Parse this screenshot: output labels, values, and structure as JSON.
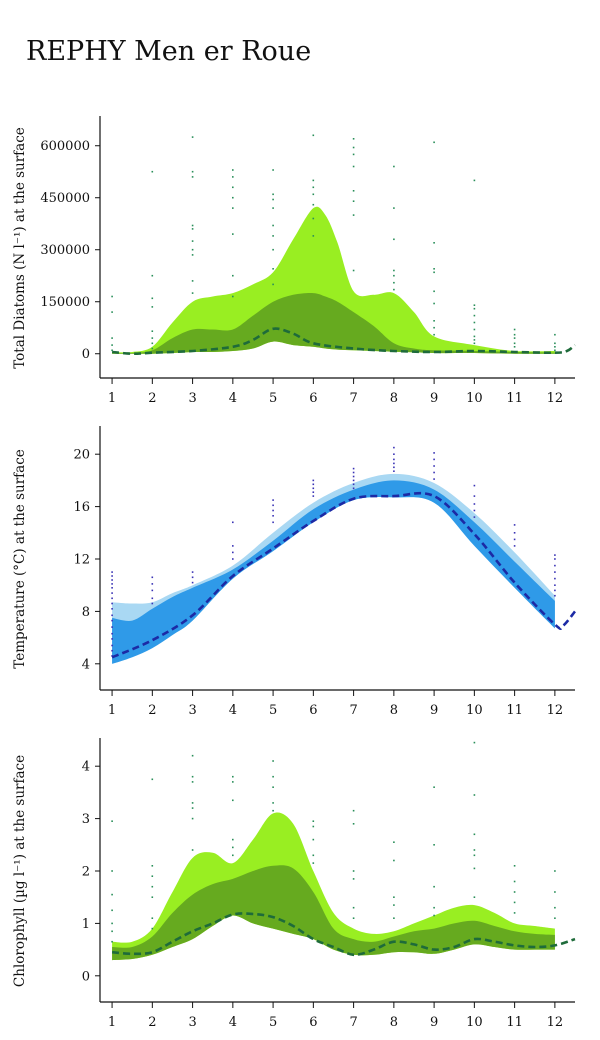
{
  "page": {
    "title": "REPHY Men er Roue"
  },
  "chart_data": [
    {
      "type": "area",
      "ylabel": "Total Diatoms (N l⁻¹) at the surface",
      "x_ticks": [
        1,
        2,
        3,
        4,
        5,
        6,
        7,
        8,
        9,
        10,
        11,
        12
      ],
      "y_ticks": [
        0,
        150000,
        300000,
        450000,
        600000
      ],
      "y_tick_labels": [
        "0",
        "150000",
        "300000",
        "450000",
        "600000"
      ],
      "xlim": [
        0.7,
        12.5
      ],
      "ylim": [
        -70000,
        680000
      ],
      "colors": {
        "outer": "#99ee22",
        "inner": "#66aa1f",
        "median": "#1e6b3a",
        "points": "#2a8f5a"
      },
      "bands": {
        "x": [
          1,
          1.5,
          2,
          2.5,
          3,
          3.5,
          4,
          4.5,
          5,
          5.5,
          6,
          6.3,
          6.6,
          7,
          7.5,
          8,
          8.5,
          9,
          10,
          11,
          12
        ],
        "outer_hi": [
          5000,
          5000,
          20000,
          90000,
          150000,
          165000,
          175000,
          200000,
          235000,
          330000,
          420000,
          400000,
          320000,
          180000,
          170000,
          175000,
          120000,
          50000,
          25000,
          8000,
          8000
        ],
        "inner_hi": [
          2000,
          2000,
          10000,
          45000,
          70000,
          70000,
          70000,
          110000,
          150000,
          170000,
          175000,
          165000,
          150000,
          120000,
          80000,
          30000,
          15000,
          10000,
          8000,
          5000,
          3000
        ],
        "inner_lo": [
          0,
          0,
          0,
          2000,
          5000,
          5000,
          8000,
          15000,
          35000,
          25000,
          20000,
          15000,
          12000,
          10000,
          8000,
          6000,
          4000,
          2000,
          2000,
          0,
          0
        ]
      },
      "median": {
        "x": [
          1,
          1.5,
          2,
          3,
          4,
          4.5,
          5,
          5.5,
          6,
          7,
          8,
          9,
          10,
          11,
          12,
          12.3,
          12.5
        ],
        "y": [
          5000,
          0,
          3000,
          8000,
          20000,
          40000,
          72000,
          58000,
          30000,
          15000,
          8000,
          5000,
          8000,
          5000,
          3000,
          8000,
          25000
        ]
      },
      "points": [
        [
          1,
          165000
        ],
        [
          1,
          120000
        ],
        [
          1,
          45000
        ],
        [
          1,
          25000
        ],
        [
          1,
          10000
        ],
        [
          2,
          525000
        ],
        [
          2,
          225000
        ],
        [
          2,
          160000
        ],
        [
          2,
          135000
        ],
        [
          2,
          65000
        ],
        [
          2,
          45000
        ],
        [
          2,
          30000
        ],
        [
          2,
          15000
        ],
        [
          3,
          625000
        ],
        [
          3,
          525000
        ],
        [
          3,
          510000
        ],
        [
          3,
          370000
        ],
        [
          3,
          360000
        ],
        [
          3,
          325000
        ],
        [
          3,
          300000
        ],
        [
          3,
          285000
        ],
        [
          3,
          210000
        ],
        [
          3,
          175000
        ],
        [
          4,
          530000
        ],
        [
          4,
          510000
        ],
        [
          4,
          480000
        ],
        [
          4,
          450000
        ],
        [
          4,
          420000
        ],
        [
          4,
          345000
        ],
        [
          4,
          225000
        ],
        [
          4,
          165000
        ],
        [
          5,
          530000
        ],
        [
          5,
          460000
        ],
        [
          5,
          445000
        ],
        [
          5,
          420000
        ],
        [
          5,
          370000
        ],
        [
          5,
          340000
        ],
        [
          5,
          300000
        ],
        [
          5,
          245000
        ],
        [
          5,
          200000
        ],
        [
          6,
          630000
        ],
        [
          6,
          500000
        ],
        [
          6,
          480000
        ],
        [
          6,
          460000
        ],
        [
          6,
          430000
        ],
        [
          6,
          390000
        ],
        [
          6,
          340000
        ],
        [
          7,
          620000
        ],
        [
          7,
          595000
        ],
        [
          7,
          575000
        ],
        [
          7,
          540000
        ],
        [
          7,
          470000
        ],
        [
          7,
          440000
        ],
        [
          7,
          400000
        ],
        [
          7,
          240000
        ],
        [
          8,
          540000
        ],
        [
          8,
          420000
        ],
        [
          8,
          330000
        ],
        [
          8,
          240000
        ],
        [
          8,
          225000
        ],
        [
          8,
          205000
        ],
        [
          8,
          185000
        ],
        [
          9,
          610000
        ],
        [
          9,
          320000
        ],
        [
          9,
          245000
        ],
        [
          9,
          235000
        ],
        [
          9,
          180000
        ],
        [
          9,
          145000
        ],
        [
          9,
          95000
        ],
        [
          9,
          75000
        ],
        [
          9,
          55000
        ],
        [
          10,
          500000
        ],
        [
          10,
          140000
        ],
        [
          10,
          130000
        ],
        [
          10,
          110000
        ],
        [
          10,
          90000
        ],
        [
          10,
          70000
        ],
        [
          10,
          50000
        ],
        [
          10,
          40000
        ],
        [
          10,
          30000
        ],
        [
          11,
          70000
        ],
        [
          11,
          55000
        ],
        [
          11,
          45000
        ],
        [
          11,
          30000
        ],
        [
          11,
          20000
        ],
        [
          12,
          55000
        ],
        [
          12,
          30000
        ],
        [
          12,
          20000
        ],
        [
          12,
          10000
        ]
      ]
    },
    {
      "type": "area",
      "ylabel": "Temperature (°C) at the surface",
      "x_ticks": [
        1,
        2,
        3,
        4,
        5,
        6,
        7,
        8,
        9,
        10,
        11,
        12
      ],
      "y_ticks": [
        4,
        8,
        12,
        16,
        20
      ],
      "y_tick_labels": [
        "4",
        "8",
        "12",
        "16",
        "20"
      ],
      "xlim": [
        0.7,
        12.5
      ],
      "ylim": [
        2,
        22
      ],
      "colors": {
        "outer": "#a9d8f3",
        "inner": "#2f9ae8",
        "median": "#1c2aa5",
        "points": "#3a33b5"
      },
      "bands": {
        "x": [
          1,
          1.5,
          2,
          2.5,
          3,
          4,
          5,
          6,
          7,
          8,
          9,
          10,
          11,
          12
        ],
        "outer_hi": [
          8.7,
          8.6,
          8.7,
          9.4,
          10.0,
          11.5,
          14.0,
          16.3,
          17.8,
          18.5,
          17.8,
          15.5,
          12.5,
          9.2
        ],
        "inner_hi": [
          7.5,
          7.3,
          8.2,
          9.1,
          9.8,
          11.2,
          13.4,
          15.8,
          17.3,
          18.0,
          17.3,
          14.8,
          11.8,
          8.8
        ],
        "inner_lo": [
          4.0,
          4.5,
          5.2,
          6.2,
          7.3,
          10.5,
          12.6,
          14.8,
          16.5,
          16.7,
          16.3,
          13.0,
          9.8,
          6.7
        ]
      },
      "median": {
        "x": [
          1,
          2,
          3,
          4,
          5,
          6,
          7,
          8,
          9,
          10,
          11,
          12,
          12.2,
          12.5
        ],
        "y": [
          4.5,
          5.8,
          7.7,
          10.7,
          12.8,
          14.9,
          16.6,
          16.8,
          16.8,
          13.9,
          10.2,
          7.0,
          6.9,
          8.0
        ]
      },
      "points": [
        [
          1,
          11.0
        ],
        [
          1,
          10.7
        ],
        [
          1,
          10.4
        ],
        [
          1,
          10.1
        ],
        [
          1,
          9.8
        ],
        [
          1,
          9.4
        ],
        [
          1,
          9.0
        ],
        [
          1,
          8.6
        ],
        [
          1,
          8.2
        ],
        [
          1,
          7.7
        ],
        [
          1,
          7.3
        ],
        [
          1,
          6.8
        ],
        [
          1,
          6.3
        ],
        [
          1,
          5.9
        ],
        [
          1,
          5.4
        ],
        [
          1,
          5.0
        ],
        [
          1,
          4.6
        ],
        [
          2,
          10.6
        ],
        [
          2,
          10.1
        ],
        [
          2,
          9.6
        ],
        [
          2,
          9.0
        ],
        [
          2,
          8.6
        ],
        [
          3,
          11.0
        ],
        [
          3,
          10.6
        ],
        [
          3,
          10.2
        ],
        [
          4,
          14.8
        ],
        [
          4,
          13.0
        ],
        [
          4,
          12.5
        ],
        [
          4,
          12.0
        ],
        [
          5,
          16.5
        ],
        [
          5,
          16.1
        ],
        [
          5,
          15.7
        ],
        [
          5,
          15.3
        ],
        [
          5,
          14.8
        ],
        [
          6,
          18.0
        ],
        [
          6,
          17.7
        ],
        [
          6,
          17.4
        ],
        [
          6,
          17.1
        ],
        [
          6,
          16.8
        ],
        [
          7,
          18.9
        ],
        [
          7,
          18.6
        ],
        [
          7,
          18.3
        ],
        [
          7,
          18.0
        ],
        [
          7,
          17.7
        ],
        [
          7,
          17.4
        ],
        [
          8,
          20.5
        ],
        [
          8,
          20.0
        ],
        [
          8,
          19.6
        ],
        [
          8,
          19.3
        ],
        [
          8,
          19.0
        ],
        [
          8,
          18.7
        ],
        [
          9,
          20.1
        ],
        [
          9,
          19.6
        ],
        [
          9,
          19.1
        ],
        [
          9,
          18.6
        ],
        [
          9,
          18.1
        ],
        [
          10,
          17.6
        ],
        [
          10,
          16.8
        ],
        [
          10,
          16.2
        ],
        [
          10,
          15.7
        ],
        [
          10,
          15.2
        ],
        [
          11,
          14.6
        ],
        [
          11,
          14.0
        ],
        [
          11,
          13.5
        ],
        [
          11,
          13.0
        ],
        [
          12,
          12.3
        ],
        [
          12,
          12.0
        ],
        [
          12,
          11.5
        ],
        [
          12,
          11.0
        ],
        [
          12,
          10.5
        ],
        [
          12,
          10.0
        ],
        [
          12,
          9.6
        ],
        [
          12,
          9.2
        ]
      ]
    },
    {
      "type": "area",
      "ylabel": "Chlorophyll (µg l⁻¹) at the surface",
      "x_ticks": [
        1,
        2,
        3,
        4,
        5,
        6,
        7,
        8,
        9,
        10,
        11,
        12
      ],
      "y_ticks": [
        0,
        1,
        2,
        3,
        4
      ],
      "y_tick_labels": [
        "0",
        "1",
        "2",
        "3",
        "4"
      ],
      "xlim": [
        0.7,
        12.5
      ],
      "ylim": [
        -0.5,
        4.5
      ],
      "colors": {
        "outer": "#99ee22",
        "inner": "#66aa1f",
        "median": "#1e6b3a",
        "points": "#2a8f5a"
      },
      "bands": {
        "x": [
          1,
          1.5,
          2,
          2.5,
          3,
          3.5,
          4,
          4.5,
          5,
          5.5,
          6,
          6.5,
          7,
          7.5,
          8,
          8.5,
          9,
          9.5,
          10,
          10.5,
          11,
          11.5,
          12
        ],
        "outer_hi": [
          0.65,
          0.65,
          0.9,
          1.6,
          2.25,
          2.35,
          2.15,
          2.6,
          3.1,
          2.9,
          2.0,
          1.2,
          0.9,
          0.8,
          0.85,
          1.0,
          1.15,
          1.3,
          1.35,
          1.2,
          1.0,
          0.95,
          0.9
        ],
        "inner_hi": [
          0.55,
          0.55,
          0.75,
          1.2,
          1.55,
          1.75,
          1.85,
          2.0,
          2.1,
          2.05,
          1.6,
          0.9,
          0.7,
          0.65,
          0.75,
          0.85,
          0.9,
          1.0,
          1.05,
          0.95,
          0.85,
          0.8,
          0.78
        ],
        "inner_lo": [
          0.3,
          0.32,
          0.4,
          0.55,
          0.7,
          0.95,
          1.15,
          1.0,
          0.9,
          0.8,
          0.7,
          0.5,
          0.4,
          0.4,
          0.45,
          0.45,
          0.42,
          0.5,
          0.6,
          0.55,
          0.5,
          0.5,
          0.5
        ]
      },
      "median": {
        "x": [
          1,
          1.5,
          2,
          2.5,
          3,
          3.5,
          4,
          4.5,
          5,
          5.5,
          6,
          6.5,
          7,
          7.5,
          8,
          8.5,
          9,
          9.5,
          10,
          10.5,
          11,
          11.5,
          12,
          12.5
        ],
        "y": [
          0.45,
          0.42,
          0.45,
          0.65,
          0.85,
          1.0,
          1.17,
          1.18,
          1.12,
          0.95,
          0.7,
          0.55,
          0.4,
          0.5,
          0.65,
          0.6,
          0.5,
          0.55,
          0.7,
          0.65,
          0.58,
          0.55,
          0.58,
          0.7
        ]
      },
      "points": [
        [
          1,
          2.95
        ],
        [
          1,
          2.0
        ],
        [
          1,
          1.55
        ],
        [
          1,
          1.25
        ],
        [
          1,
          1.0
        ],
        [
          1,
          0.85
        ],
        [
          1,
          0.65
        ],
        [
          2,
          3.75
        ],
        [
          2,
          2.1
        ],
        [
          2,
          1.9
        ],
        [
          2,
          1.7
        ],
        [
          2,
          1.5
        ],
        [
          2,
          1.1
        ],
        [
          2,
          0.9
        ],
        [
          3,
          4.2
        ],
        [
          3,
          3.8
        ],
        [
          3,
          3.7
        ],
        [
          3,
          3.3
        ],
        [
          3,
          3.2
        ],
        [
          3,
          3.0
        ],
        [
          3,
          2.4
        ],
        [
          4,
          3.8
        ],
        [
          4,
          3.7
        ],
        [
          4,
          3.35
        ],
        [
          4,
          2.6
        ],
        [
          4,
          2.45
        ],
        [
          4,
          2.3
        ],
        [
          5,
          4.1
        ],
        [
          5,
          3.8
        ],
        [
          5,
          3.6
        ],
        [
          5,
          3.3
        ],
        [
          5,
          3.15
        ],
        [
          6,
          2.95
        ],
        [
          6,
          2.85
        ],
        [
          6,
          2.6
        ],
        [
          6,
          2.3
        ],
        [
          6,
          2.15
        ],
        [
          7,
          3.15
        ],
        [
          7,
          2.9
        ],
        [
          7,
          2.0
        ],
        [
          7,
          1.85
        ],
        [
          7,
          1.3
        ],
        [
          7,
          1.1
        ],
        [
          8,
          2.55
        ],
        [
          8,
          2.2
        ],
        [
          8,
          1.5
        ],
        [
          8,
          1.35
        ],
        [
          8,
          1.1
        ],
        [
          9,
          3.6
        ],
        [
          9,
          2.5
        ],
        [
          9,
          1.7
        ],
        [
          9,
          1.3
        ],
        [
          9,
          1.15
        ],
        [
          10,
          4.45
        ],
        [
          10,
          3.45
        ],
        [
          10,
          2.7
        ],
        [
          10,
          2.4
        ],
        [
          10,
          2.3
        ],
        [
          10,
          2.05
        ],
        [
          10,
          1.5
        ],
        [
          11,
          2.1
        ],
        [
          11,
          1.8
        ],
        [
          11,
          1.6
        ],
        [
          11,
          1.4
        ],
        [
          11,
          1.2
        ],
        [
          12,
          2.0
        ],
        [
          12,
          1.6
        ],
        [
          12,
          1.3
        ],
        [
          12,
          1.1
        ]
      ]
    }
  ]
}
